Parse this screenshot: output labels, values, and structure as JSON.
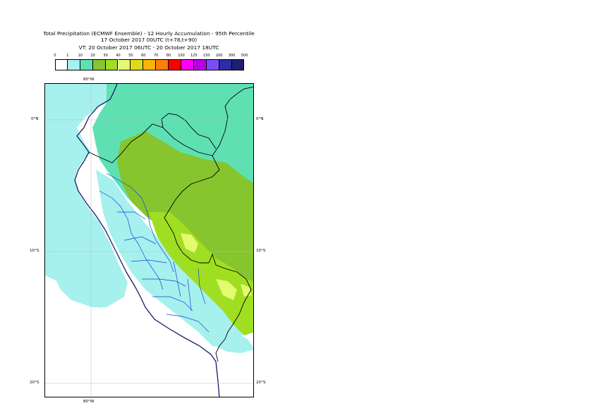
{
  "title": {
    "line1": "Total Precipitation (ECMWF Ensemble) - 12 Hourly Accumulation - 95th Percentile",
    "line2": "17 October 2017 00UTC (t+78,t+90)",
    "line3": "VT: 20 October 2017 06UTC - 20 October 2017 18UTC"
  },
  "legend": {
    "thresholds": [
      "0",
      "1",
      "10",
      "20",
      "30",
      "40",
      "50",
      "60",
      "70",
      "80",
      "100",
      "125",
      "150",
      "200",
      "300",
      "500"
    ],
    "colors": [
      "#ffffff",
      "#a6f0ee",
      "#5fe0b3",
      "#86c52d",
      "#9fde21",
      "#e4fa70",
      "#dcdc1d",
      "#fcb408",
      "#fc7e0c",
      "#fc0000",
      "#fc00fc",
      "#b800e4",
      "#7a4ef6",
      "#2c2ca8",
      "#1e1e72"
    ]
  },
  "axes": {
    "lon_top": "80°W",
    "lon_bottom": "80°W",
    "lat_0_left": "0°N",
    "lat_0_right": "0°N",
    "lat_10_left": "10°S",
    "lat_10_right": "10°S",
    "lat_20_left": "20°S",
    "lat_20_right": "20°S"
  },
  "map": {
    "region": "Peru and Ecuador",
    "colors": {
      "ocean_light": "#a6f0ee",
      "teal": "#5fe0b3",
      "green": "#86c52d",
      "lime": "#9fde21",
      "yellow": "#e4fa70",
      "coast": "#1a1a66",
      "border": "#000000",
      "province": "#1a3fd6"
    }
  }
}
